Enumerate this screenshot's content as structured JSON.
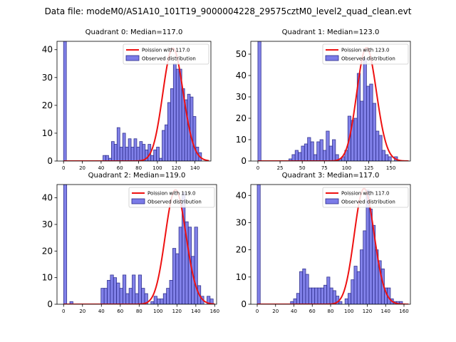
{
  "suptitle": "Data file: modeM0/AS1A10_101T19_9000004228_29575cztM0_level2_quad_clean.evt",
  "colors": {
    "bar_fill": "#7b7be8",
    "bar_edge": "#2a2a8a",
    "curve": "#ee1111"
  },
  "chart_data": [
    {
      "type": "bar",
      "title": "Quadrant 0: Median=117.0",
      "legend": [
        "Poission with 117.0",
        "Observed distribution"
      ],
      "legend_position": "top-right",
      "xlim": [
        -7,
        157
      ],
      "ylim": [
        0,
        43
      ],
      "xticks": [
        0,
        20,
        40,
        60,
        80,
        100,
        120,
        140
      ],
      "yticks": [
        0,
        10,
        20,
        30,
        40
      ],
      "bin_width": 3,
      "bin_start": 0,
      "values": [
        43,
        0,
        0,
        0,
        0,
        0,
        0,
        0,
        0,
        0,
        0,
        0,
        0,
        0,
        2,
        2,
        1,
        7,
        6,
        12,
        5,
        10,
        5,
        8,
        5,
        8,
        5,
        7,
        6,
        4,
        6,
        2,
        4,
        5,
        1,
        11,
        13,
        21,
        26,
        35,
        33,
        33,
        26,
        22,
        24,
        23,
        16,
        5,
        3
      ],
      "poisson_mean": 117.0,
      "poisson_scale": 40.5
    },
    {
      "type": "bar",
      "title": "Quadrant 1: Median=123.0",
      "legend": [
        "Poission with 123.0",
        "Observed distribution"
      ],
      "legend_position": "top-right",
      "xlim": [
        -8,
        172
      ],
      "ylim": [
        0,
        56
      ],
      "xticks": [
        0,
        25,
        50,
        75,
        100,
        125,
        150
      ],
      "yticks": [
        0,
        10,
        20,
        30,
        40,
        50
      ],
      "bin_width": 3.5,
      "bin_start": 0,
      "values": [
        56,
        0,
        0,
        0,
        0,
        0,
        0,
        0,
        0,
        0,
        1,
        3,
        5,
        4,
        7,
        8,
        11,
        9,
        3,
        9,
        10,
        5,
        14,
        7,
        10,
        3,
        1,
        2,
        5,
        21,
        19,
        20,
        41,
        28,
        48,
        35,
        36,
        27,
        14,
        12,
        5,
        3,
        2,
        0,
        2
      ],
      "poisson_mean": 123.0,
      "poisson_scale": 53.0
    },
    {
      "type": "bar",
      "title": "Quadrant 2: Median=119.0",
      "legend": [
        "Poission with 119.0",
        "Observed distribution"
      ],
      "legend_position": "top-right",
      "xlim": [
        -7,
        162
      ],
      "ylim": [
        0,
        45
      ],
      "xticks": [
        0,
        20,
        40,
        60,
        80,
        100,
        120,
        140,
        160
      ],
      "yticks": [
        0,
        10,
        20,
        30,
        40
      ],
      "bin_width": 3.3,
      "bin_start": 0,
      "values": [
        45,
        0,
        1,
        0,
        0,
        0,
        0,
        0,
        0,
        0,
        0,
        0,
        6,
        6,
        9,
        11,
        10,
        8,
        6,
        11,
        4,
        6,
        11,
        4,
        11,
        6,
        4,
        0,
        1,
        3,
        2,
        2,
        4,
        6,
        9,
        21,
        19,
        29,
        42,
        31,
        29,
        18,
        29,
        7,
        3,
        0,
        3,
        2
      ],
      "poisson_mean": 119.0,
      "poisson_scale": 43.0
    },
    {
      "type": "bar",
      "title": "Quadrant 3: Median=117.0",
      "legend": [
        "Poission with 117.0",
        "Observed distribution"
      ],
      "legend_position": "top-right",
      "xlim": [
        -7,
        167
      ],
      "ylim": [
        0,
        44
      ],
      "xticks": [
        0,
        20,
        40,
        60,
        80,
        100,
        120,
        140,
        160
      ],
      "yticks": [
        0,
        10,
        20,
        30,
        40
      ],
      "bin_width": 3.3,
      "bin_start": 0,
      "values": [
        44,
        0,
        0,
        0,
        0,
        0,
        0,
        0,
        0,
        0,
        0,
        1,
        2,
        4,
        12,
        13,
        11,
        6,
        6,
        6,
        6,
        6,
        7,
        10,
        6,
        5,
        3,
        1,
        0,
        2,
        4,
        9,
        14,
        12,
        20,
        27,
        42,
        35,
        29,
        20,
        16,
        13,
        6,
        6,
        2,
        1,
        1,
        1
      ],
      "poisson_mean": 117.0,
      "poisson_scale": 42.5
    }
  ]
}
